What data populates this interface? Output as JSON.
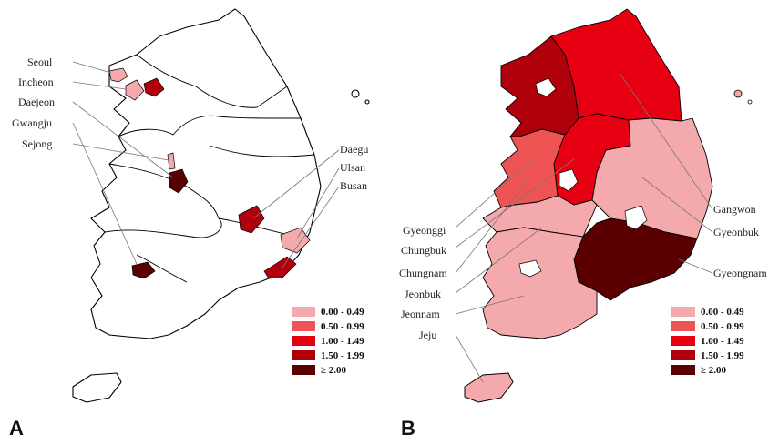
{
  "panels": [
    {
      "letter": "A",
      "labels": [
        "Seoul",
        "Incheon",
        "Daejeon",
        "Gwangju",
        "Sejong",
        "Daegu",
        "Ulsan",
        "Busan"
      ],
      "legend": [
        "0.00 - 0.49",
        "0.50 - 0.99",
        "1.00 - 1.49",
        "1.50 - 1.99",
        "≥ 2.00"
      ]
    },
    {
      "letter": "B",
      "labels": [
        "Gyeonggi",
        "Chungbuk",
        "Chungnam",
        "Jeonbuk",
        "Jeonnam",
        "Jeju",
        "Gangwon",
        "Gyeonbuk",
        "Gyeongnam"
      ],
      "legend": [
        "0.00 - 0.49",
        "0.50 - 0.99",
        "1.00 - 1.49",
        "1.50 - 1.99",
        "≥ 2.00"
      ]
    }
  ],
  "colors": {
    "c0": "#f4a9ad",
    "c1": "#ee5454",
    "c2": "#e60012",
    "c3": "#b0000c",
    "c4": "#5a0000"
  }
}
